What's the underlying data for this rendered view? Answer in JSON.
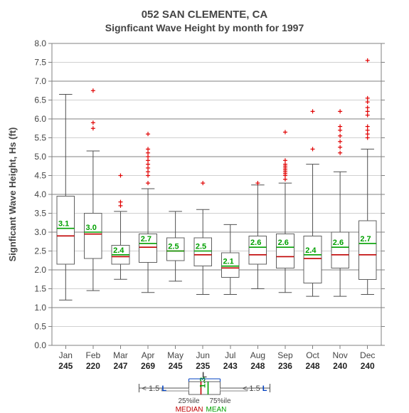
{
  "title_line1": "052   SAN CLEMENTE, CA",
  "title_line2": "Signficant Wave Height by month for 1997",
  "y_axis_label": "Signficant Wave Height, Hs (ft)",
  "chart": {
    "type": "boxplot",
    "ylim": [
      0,
      8.0
    ],
    "ytick_step": 0.5,
    "background_color": "#ffffff",
    "grid_color": "#d0d0d0",
    "grid_color2": "#808080",
    "axis_color": "#808080",
    "box_fill": "#ffffff",
    "box_border": "#606060",
    "median_color": "#c00000",
    "mean_color": "#00a000",
    "whisker_color": "#505050",
    "outlier_color": "#e00000",
    "outlier_shape": "plus",
    "title_fontsize": 15,
    "label_fontsize": 13,
    "tick_fontsize": 12,
    "mean_fontsize": 11,
    "categories": [
      "Jan",
      "Feb",
      "Mar",
      "Apr",
      "May",
      "Jun",
      "Jul",
      "Aug",
      "Sep",
      "Oct",
      "Nov",
      "Dec"
    ],
    "counts": [
      245,
      220,
      247,
      269,
      245,
      235,
      243,
      248,
      236,
      248,
      240,
      240
    ],
    "boxes": [
      {
        "mean": 3.1,
        "median": 2.9,
        "q1": 2.15,
        "q3": 3.95,
        "wlo": 1.2,
        "whi": 6.65,
        "out": []
      },
      {
        "mean": 3.0,
        "median": 2.95,
        "q1": 2.3,
        "q3": 3.5,
        "wlo": 1.45,
        "whi": 5.15,
        "out": [
          5.75,
          5.9,
          6.75
        ]
      },
      {
        "mean": 2.4,
        "median": 2.35,
        "q1": 2.15,
        "q3": 2.65,
        "wlo": 1.75,
        "whi": 3.55,
        "out": [
          3.7,
          3.8,
          4.5
        ]
      },
      {
        "mean": 2.7,
        "median": 2.6,
        "q1": 2.2,
        "q3": 2.95,
        "wlo": 1.4,
        "whi": 4.15,
        "out": [
          4.3,
          4.5,
          4.6,
          4.7,
          4.8,
          4.9,
          5.0,
          5.1,
          5.2,
          5.6
        ]
      },
      {
        "mean": 2.5,
        "median": 2.5,
        "q1": 2.25,
        "q3": 2.85,
        "wlo": 1.7,
        "whi": 3.55,
        "out": []
      },
      {
        "mean": 2.5,
        "median": 2.4,
        "q1": 2.1,
        "q3": 2.85,
        "wlo": 1.35,
        "whi": 3.6,
        "out": [
          4.3
        ]
      },
      {
        "mean": 2.1,
        "median": 2.05,
        "q1": 1.8,
        "q3": 2.45,
        "wlo": 1.35,
        "whi": 3.2,
        "out": []
      },
      {
        "mean": 2.6,
        "median": 2.4,
        "q1": 2.15,
        "q3": 2.9,
        "wlo": 1.5,
        "whi": 4.25,
        "out": [
          4.3
        ]
      },
      {
        "mean": 2.6,
        "median": 2.35,
        "q1": 2.05,
        "q3": 2.95,
        "wlo": 1.4,
        "whi": 4.3,
        "out": [
          4.4,
          4.5,
          4.55,
          4.6,
          4.65,
          4.7,
          4.75,
          4.8,
          4.9,
          5.65
        ]
      },
      {
        "mean": 2.4,
        "median": 2.3,
        "q1": 1.65,
        "q3": 2.9,
        "wlo": 1.3,
        "whi": 4.8,
        "out": [
          5.2,
          6.2
        ]
      },
      {
        "mean": 2.6,
        "median": 2.4,
        "q1": 2.05,
        "q3": 3.0,
        "wlo": 1.3,
        "whi": 4.6,
        "out": [
          5.1,
          5.25,
          5.4,
          5.55,
          5.7,
          5.8,
          6.2
        ]
      },
      {
        "mean": 2.7,
        "median": 2.4,
        "q1": 1.75,
        "q3": 3.3,
        "wlo": 1.35,
        "whi": 5.2,
        "out": [
          5.5,
          5.6,
          5.7,
          5.8,
          6.1,
          6.2,
          6.3,
          6.45,
          6.55,
          7.55
        ]
      }
    ]
  },
  "legend": {
    "median_label": "MEDIAN",
    "mean_label": "MEAN",
    "p25_label": "25%ile",
    "p75_label": "75%ile",
    "whisker_label_left": "< 1.5",
    "whisker_label_right": "< 1.5",
    "L_label": "L",
    "example_mean": "1.3"
  }
}
